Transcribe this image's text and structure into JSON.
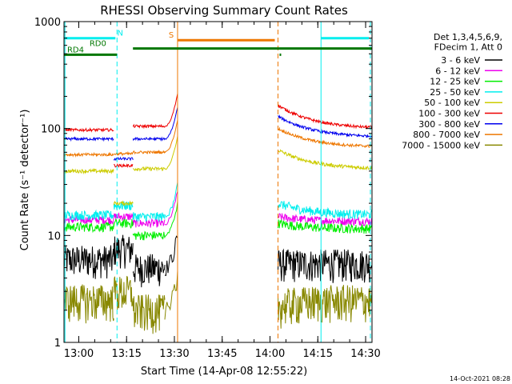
{
  "chart_data": {
    "type": "line",
    "title": "RHESSI Observing Summary Count Rates",
    "xlabel": "Start Time (14-Apr-08 12:55:22)",
    "ylabel": "Count Rate (s⁻¹ detector⁻¹)",
    "x_scale": "time",
    "x_range": [
      "12:55:22",
      "14:32:00"
    ],
    "x_ticks": [
      "13:00",
      "13:15",
      "13:30",
      "13:45",
      "14:00",
      "14:15",
      "14:30"
    ],
    "y_scale": "log",
    "ylim": [
      1,
      1000
    ],
    "y_ticks": [
      "1",
      "10",
      "100",
      "1000"
    ],
    "grid": false,
    "legend_header": [
      "Det 1,3,4,5,6,9,",
      "FDecim 1, Att 0"
    ],
    "series": [
      {
        "name": "3 - 6 keV",
        "color": "#000000",
        "levels": {
          "a": 6.0,
          "b": 7.5,
          "c": 5.0,
          "d": 5.5,
          "e": 5.5
        },
        "noise": 0.35
      },
      {
        "name": "6 - 12 keV",
        "color": "#ee00ee",
        "levels": {
          "a": 14.0,
          "b": 15.0,
          "c": 13.0,
          "d": 15.0,
          "e": 13.5
        },
        "noise": 0.09
      },
      {
        "name": "12 - 25 keV",
        "color": "#00ee00",
        "levels": {
          "a": 12.0,
          "b": 13.0,
          "c": 10.0,
          "d": 13.0,
          "e": 11.5
        },
        "noise": 0.1
      },
      {
        "name": "25 - 50 keV",
        "color": "#00eeee",
        "levels": {
          "a": 15.5,
          "b": 19.0,
          "c": 15.0,
          "d": 20.0,
          "e": 15.5
        },
        "noise": 0.1
      },
      {
        "name": "50 - 100 keV",
        "color": "#cccc00",
        "levels": {
          "a": 40.0,
          "b": 20.0,
          "c": 42.0,
          "d": 63.0,
          "e": 42.0
        },
        "noise": 0.04
      },
      {
        "name": "100 - 300 keV",
        "color": "#ee0000",
        "levels": {
          "a": 97.0,
          "b": 45.0,
          "c": 105.0,
          "d": 165.0,
          "e": 100.0
        },
        "noise": 0.03
      },
      {
        "name": "300 - 800 keV",
        "color": "#0000ee",
        "levels": {
          "a": 80.0,
          "b": 52.0,
          "c": 80.0,
          "d": 130.0,
          "e": 83.0
        },
        "noise": 0.03
      },
      {
        "name": "800 - 7000 keV",
        "color": "#ee7700",
        "levels": {
          "a": 57.0,
          "b": 58.0,
          "c": 60.0,
          "d": 100.0,
          "e": 67.0
        },
        "noise": 0.03
      },
      {
        "name": "7000 - 15000 keV",
        "color": "#888800",
        "levels": {
          "a": 2.5,
          "b": 3.0,
          "c": 2.0,
          "d": 2.2,
          "e": 2.5
        },
        "noise": 0.4
      }
    ],
    "segments": [
      {
        "x0": "12:55:22",
        "x1": "13:11:00",
        "level": "a"
      },
      {
        "x0": "13:11:00",
        "x1": "13:17:00",
        "level": "b"
      },
      {
        "x0": "13:17:00",
        "x1": "13:27:00",
        "level": "c"
      },
      {
        "x0": "14:02:30",
        "x1": "14:32:00",
        "level": "d",
        "decay_to": "e"
      }
    ],
    "flare": {
      "x0": "13:27:00",
      "x1": "13:31:00",
      "peak_factor": 2.0
    },
    "vlines": [
      {
        "x": "12:55:40",
        "color": "#00eeee",
        "style": "solid"
      },
      {
        "x": "13:12:00",
        "color": "#00eeee",
        "style": "dashed"
      },
      {
        "x": "13:31:00",
        "color": "#ee7700",
        "style": "solid"
      },
      {
        "x": "14:02:30",
        "color": "#ee7700",
        "style": "dashed"
      },
      {
        "x": "14:16:00",
        "color": "#00eeee",
        "style": "solid"
      },
      {
        "x": "14:31:30",
        "color": "#00eeee",
        "style": "dashed"
      }
    ],
    "flag_bars": [
      {
        "label": "N",
        "color": "#00eeee",
        "y_value": 700,
        "spans": [
          [
            "12:55:22",
            "13:11:30"
          ],
          [
            "14:16:00",
            "14:31:00"
          ]
        ],
        "label_at": "13:13:00"
      },
      {
        "label": "S",
        "color": "#ee7700",
        "y_value": 670,
        "spans": [
          [
            "13:31:00",
            "14:01:30"
          ]
        ],
        "label_at": "13:29:00"
      },
      {
        "label": "RD0",
        "color": "#007700",
        "y_value": 560,
        "spans": [
          [
            "13:17:00",
            "14:32:00"
          ]
        ],
        "label_at": "13:06:00"
      },
      {
        "label": "RD4",
        "color": "#007700",
        "y_value": 490,
        "spans": [
          [
            "12:55:22",
            "13:12:00"
          ],
          [
            "14:03:00",
            "14:03:30"
          ]
        ],
        "label_at": "12:59:00"
      }
    ]
  },
  "timestamp": "14-Oct-2021 08:28"
}
